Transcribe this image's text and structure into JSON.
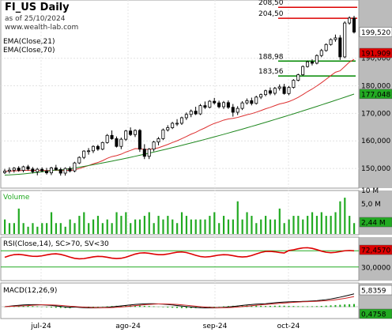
{
  "header": {
    "title": "FI_US Daily",
    "date": "as of 25/10/2024",
    "site": "www.wealth-lab.com"
  },
  "colors": {
    "up": "#ffffff",
    "down": "#000000",
    "ema21": "#dd3030",
    "ema70": "#208820",
    "volume": "#22aa22",
    "rsi": "#dd0000",
    "rsiBand": "#22aa22",
    "macdBlack": "#000000",
    "macdRed": "#cc2222",
    "histogram": "#22aa22",
    "axisBg": "#bbbbbb",
    "pricePill": "#ffffff",
    "ema21Pill": "#dd0000",
    "ema70Pill": "#22aa22"
  },
  "chart_data": {
    "type": "candlestick",
    "x_labels": [
      "jul-24",
      "ago-24",
      "sep-24",
      "oct-24"
    ],
    "price_axis": {
      "min": 144,
      "max": 210,
      "ticks": [
        150,
        160,
        170,
        180,
        190
      ]
    },
    "ema_legend": [
      "EMA(Close,21)",
      "EMA(Close,70)"
    ],
    "last_values": {
      "close": "199,520",
      "ema21": "191,909",
      "ema70": "177,048"
    },
    "levels": [
      {
        "label": "208,50",
        "value": 208.5,
        "color": "#dd0000"
      },
      {
        "label": "204,50",
        "value": 204.5,
        "color": "#dd0000"
      },
      {
        "label": "188,98",
        "value": 188.98,
        "color": "#008800"
      },
      {
        "label": "183,56",
        "value": 183.56,
        "color": "#008800"
      }
    ],
    "candles": [
      [
        148.5,
        149.8,
        148,
        149
      ],
      [
        149,
        150.4,
        148.2,
        149.4
      ],
      [
        149.4,
        150.5,
        148.5,
        150.1
      ],
      [
        150.1,
        150.8,
        148.8,
        149.3
      ],
      [
        149.3,
        151,
        148.6,
        150.6
      ],
      [
        150.6,
        151.3,
        149.2,
        149.8
      ],
      [
        149.8,
        150.5,
        148.2,
        148.8
      ],
      [
        148.8,
        150.2,
        147.5,
        149.7
      ],
      [
        149.7,
        150.4,
        148.6,
        149.1
      ],
      [
        149.1,
        150.2,
        147.8,
        148.4
      ],
      [
        148.4,
        150.6,
        147.6,
        150.2
      ],
      [
        150.2,
        151.3,
        149.2,
        149.6
      ],
      [
        149.6,
        150.3,
        147.4,
        148.3
      ],
      [
        148.3,
        150.4,
        147.4,
        150
      ],
      [
        150,
        150.7,
        148.6,
        149.1
      ],
      [
        149.1,
        152.4,
        148.6,
        152
      ],
      [
        152,
        154.4,
        151.6,
        154
      ],
      [
        154,
        156.6,
        153.4,
        156.3
      ],
      [
        156.3,
        157.4,
        155,
        156.4
      ],
      [
        156.4,
        158.4,
        155.6,
        158
      ],
      [
        158,
        158.6,
        156.4,
        157
      ],
      [
        157,
        159.7,
        156.6,
        159.4
      ],
      [
        159.4,
        162.5,
        159,
        162
      ],
      [
        162,
        163.8,
        160.4,
        160.8
      ],
      [
        160.8,
        161.6,
        157.6,
        158
      ],
      [
        158,
        161.2,
        157,
        160.6
      ],
      [
        160.6,
        164,
        160,
        163.6
      ],
      [
        163.6,
        164.9,
        161.8,
        162.3
      ],
      [
        162.3,
        164.2,
        161.4,
        163.8
      ],
      [
        163.8,
        164.3,
        156,
        157
      ],
      [
        157,
        158.8,
        153.4,
        154.4
      ],
      [
        154.4,
        157.4,
        153.4,
        157
      ],
      [
        157,
        160,
        156.2,
        159.6
      ],
      [
        159.6,
        161.4,
        158.4,
        160.8
      ],
      [
        160.8,
        164.5,
        160.3,
        164
      ],
      [
        164,
        165.7,
        163.4,
        164.8
      ],
      [
        164.8,
        166.9,
        164.3,
        166.4
      ],
      [
        166.4,
        167.9,
        165.4,
        166.4
      ],
      [
        166.4,
        168.8,
        165.8,
        168.4
      ],
      [
        168.4,
        170.3,
        167.6,
        169.6
      ],
      [
        169.6,
        171.4,
        168.6,
        170.8
      ],
      [
        170.8,
        172.4,
        169.4,
        169.8
      ],
      [
        169.8,
        173.4,
        169.4,
        172.8
      ],
      [
        172.8,
        174.3,
        171.6,
        172.2
      ],
      [
        172.2,
        174.8,
        171.8,
        174.4
      ],
      [
        174.4,
        175.6,
        173.2,
        173.8
      ],
      [
        173.8,
        174.6,
        171.8,
        172.4
      ],
      [
        172.4,
        174.5,
        171.6,
        173.9
      ],
      [
        173.9,
        174.7,
        171.6,
        172.2
      ],
      [
        172.2,
        173.4,
        168.8,
        170.4
      ],
      [
        170.4,
        172.6,
        169.4,
        171.8
      ],
      [
        171.8,
        174.4,
        171.2,
        173.8
      ],
      [
        173.8,
        175.4,
        173.2,
        174.6
      ],
      [
        174.6,
        175.7,
        172.9,
        173.6
      ],
      [
        173.6,
        176.4,
        173.2,
        175.9
      ],
      [
        175.9,
        177.2,
        175.2,
        176.8
      ],
      [
        176.8,
        178.6,
        176.2,
        178.2
      ],
      [
        178.2,
        179.4,
        176.6,
        177.3
      ],
      [
        177.3,
        179.6,
        176.6,
        179.1
      ],
      [
        179.1,
        180.5,
        178.3,
        179.6
      ],
      [
        179.6,
        180.7,
        176.8,
        177.2
      ],
      [
        177.2,
        179.9,
        176.6,
        179.4
      ],
      [
        179.4,
        182.4,
        179,
        182
      ],
      [
        182,
        184.4,
        181.6,
        184
      ],
      [
        184,
        187.4,
        183.6,
        187
      ],
      [
        187,
        189.2,
        186.6,
        188.7
      ],
      [
        188.7,
        189.6,
        187.4,
        188.2
      ],
      [
        188.2,
        191.4,
        187.8,
        191
      ],
      [
        191,
        193.4,
        190.4,
        192.8
      ],
      [
        192.8,
        195.4,
        192.4,
        195
      ],
      [
        195,
        197.2,
        194.6,
        196.8
      ],
      [
        196.8,
        198.6,
        196,
        197.4
      ],
      [
        197.4,
        198.4,
        189.4,
        190.5
      ],
      [
        190.5,
        203.4,
        190,
        202.8
      ],
      [
        202.8,
        205.2,
        202.2,
        204.6
      ],
      [
        204.6,
        205.4,
        199,
        199.5
      ]
    ],
    "panels": {
      "volume": {
        "label": "Volume",
        "ticks": [
          "5,0 M",
          "10 M"
        ],
        "last": "2,44 M"
      },
      "rsi": {
        "label": "RSI(Close,14), SC>70, SV<30",
        "ticks": [
          "30,0000"
        ],
        "last": "72,4570",
        "upper": 70,
        "lower": 30
      },
      "macd": {
        "label": "MACD(12,26,9)",
        "last1": "5,8359",
        "last2": "0,4758"
      }
    }
  }
}
